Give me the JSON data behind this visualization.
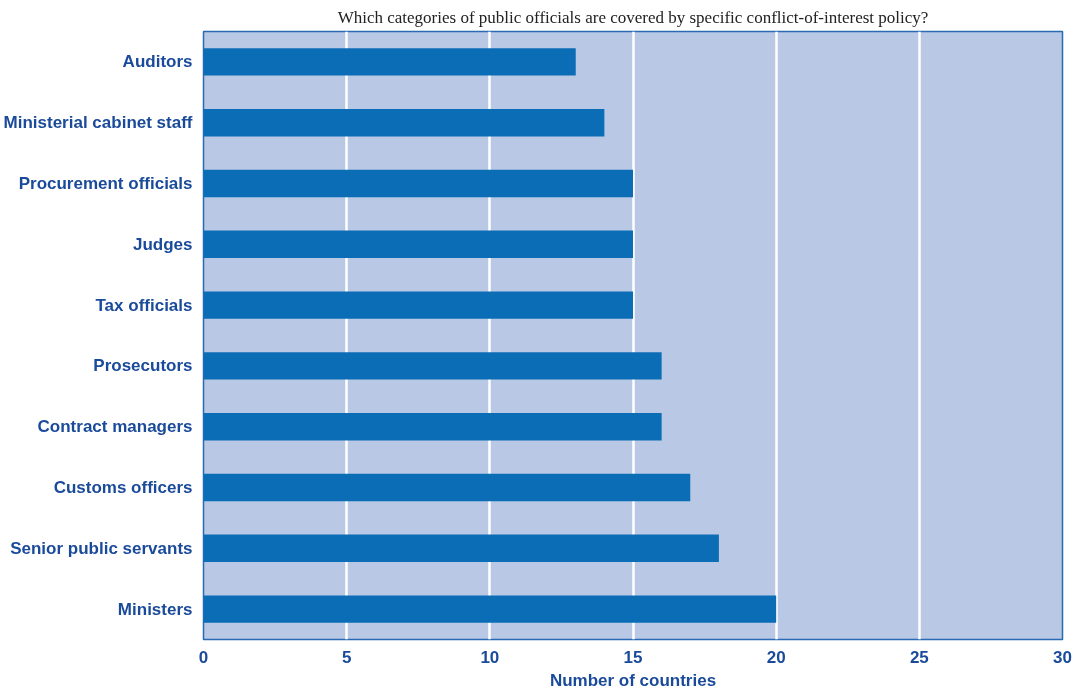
{
  "chart_data": {
    "type": "bar",
    "orientation": "horizontal",
    "title": "Which categories of public officials are covered by specific conflict-of-interest policy?",
    "xlabel": "Number of countries",
    "categories": [
      "Auditors",
      "Ministerial cabinet staff",
      "Procurement officials",
      "Judges",
      "Tax officials",
      "Prosecutors",
      "Contract managers",
      "Customs officers",
      "Senior public servants",
      "Ministers"
    ],
    "values": [
      13,
      14,
      15,
      15,
      15,
      16,
      16,
      17,
      18,
      20
    ],
    "color": "#0b6db5",
    "xlim": [
      0,
      30
    ],
    "xticks": [
      0,
      5,
      10,
      15,
      20,
      25,
      30
    ],
    "grid": "x"
  }
}
